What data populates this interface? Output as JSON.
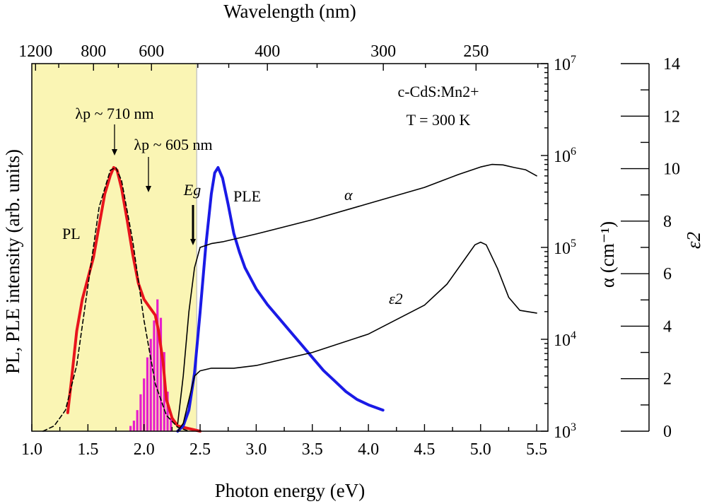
{
  "chart_data": {
    "type": "line",
    "xlabel": "Photon energy (eV)",
    "x_ticks": [
      "1.0",
      "1.5",
      "2.0",
      "2.5",
      "3.0",
      "3.5",
      "4.0",
      "4.5",
      "5.0",
      "5.5"
    ],
    "xlim": [
      1.0,
      5.6
    ],
    "top_axis": {
      "label": "Wavelength (nm)",
      "ticks": [
        {
          "nm": 1200,
          "text": "1200"
        },
        {
          "nm": 800,
          "text": "800"
        },
        {
          "nm": 600,
          "text": "600"
        },
        {
          "nm": 400,
          "text": "400"
        },
        {
          "nm": 300,
          "text": "300"
        },
        {
          "nm": 250,
          "text": "250"
        }
      ]
    },
    "y_left_label": "PL, PLE intensity (arb. units)",
    "y_alpha": {
      "label": "α (cm⁻¹)",
      "scale": "log",
      "lim": [
        1000,
        10000000
      ],
      "ticks": [
        {
          "v": 1000,
          "exp": "3"
        },
        {
          "v": 10000,
          "exp": "4"
        },
        {
          "v": 100000,
          "exp": "5"
        },
        {
          "v": 1000000,
          "exp": "6"
        },
        {
          "v": 10000000,
          "exp": "7"
        }
      ]
    },
    "y_eps2": {
      "label": "ε2",
      "lim": [
        0,
        14
      ],
      "ticks": [
        "0",
        "2",
        "4",
        "6",
        "8",
        "10",
        "12",
        "14"
      ]
    },
    "annotations": {
      "material": "c-CdS:Mn2+",
      "temperature": "T = 300 K",
      "lambda1": "λp ~ 710 nm",
      "lambda2": "λp ~ 605 nm",
      "eg": "Eg",
      "pl_label": "PL",
      "ple_label": "PLE",
      "alpha_label": "α",
      "eps2_label": "ε2"
    },
    "shaded_region": {
      "from_ev": 1.0,
      "to_ev": 2.47,
      "color": "#faf5b4"
    },
    "eg_ev": 2.47,
    "series": [
      {
        "name": "PL",
        "color": "#e8141c",
        "axis": "left_norm",
        "x": [
          1.32,
          1.35,
          1.4,
          1.45,
          1.5,
          1.55,
          1.6,
          1.65,
          1.7,
          1.73,
          1.76,
          1.8,
          1.85,
          1.9,
          1.95,
          2.0,
          2.05,
          2.1,
          2.13,
          2.17,
          2.2,
          2.25,
          2.3,
          2.4,
          2.5
        ],
        "y": [
          0.07,
          0.18,
          0.38,
          0.5,
          0.58,
          0.66,
          0.78,
          0.9,
          0.97,
          1.0,
          0.99,
          0.92,
          0.8,
          0.67,
          0.56,
          0.5,
          0.47,
          0.44,
          0.38,
          0.26,
          0.12,
          0.05,
          0.02,
          0.01,
          0.0
        ]
      },
      {
        "name": "PL fit",
        "color": "#000000",
        "dashed": true,
        "axis": "left_norm",
        "x": [
          1.1,
          1.2,
          1.3,
          1.4,
          1.5,
          1.6,
          1.7,
          1.75,
          1.8,
          1.9,
          2.0,
          2.1,
          2.2,
          2.3,
          2.4
        ],
        "y": [
          0.0,
          0.02,
          0.08,
          0.25,
          0.55,
          0.85,
          0.99,
          1.0,
          0.95,
          0.72,
          0.42,
          0.18,
          0.06,
          0.015,
          0.0
        ]
      },
      {
        "name": "PLE",
        "color": "#1a1ae6",
        "axis": "left_norm",
        "x": [
          2.3,
          2.35,
          2.4,
          2.45,
          2.5,
          2.55,
          2.6,
          2.63,
          2.66,
          2.7,
          2.75,
          2.8,
          2.85,
          2.9,
          3.0,
          3.1,
          3.2,
          3.3,
          3.4,
          3.5,
          3.6,
          3.7,
          3.8,
          3.9,
          4.0,
          4.13
        ],
        "y": [
          0.0,
          0.02,
          0.08,
          0.22,
          0.45,
          0.7,
          0.9,
          0.98,
          1.0,
          0.96,
          0.86,
          0.75,
          0.68,
          0.62,
          0.54,
          0.48,
          0.43,
          0.38,
          0.33,
          0.28,
          0.23,
          0.19,
          0.15,
          0.12,
          0.1,
          0.08
        ]
      },
      {
        "name": "α",
        "color": "#000000",
        "axis": "alpha",
        "x": [
          2.3,
          2.35,
          2.4,
          2.45,
          2.5,
          2.6,
          2.7,
          3.0,
          3.5,
          4.0,
          4.5,
          4.8,
          5.0,
          5.1,
          5.2,
          5.3,
          5.4,
          5.5
        ],
        "y": [
          1200,
          4000,
          20000,
          60000,
          100000,
          110000,
          115000,
          140000,
          200000,
          300000,
          450000,
          620000,
          750000,
          800000,
          790000,
          740000,
          700000,
          600000
        ]
      },
      {
        "name": "ε2",
        "color": "#000000",
        "axis": "eps2",
        "x": [
          2.3,
          2.35,
          2.4,
          2.45,
          2.5,
          2.6,
          2.8,
          3.0,
          3.5,
          4.0,
          4.5,
          4.7,
          4.85,
          4.95,
          5.0,
          5.05,
          5.15,
          5.25,
          5.35,
          5.5
        ],
        "y": [
          0.0,
          0.3,
          1.2,
          2.1,
          2.3,
          2.4,
          2.4,
          2.5,
          3.0,
          3.7,
          4.8,
          5.6,
          6.5,
          7.1,
          7.2,
          7.1,
          6.2,
          5.1,
          4.6,
          4.5
        ]
      }
    ],
    "bars": {
      "name": "PL components",
      "color": "#e61ecb",
      "axis": "left_norm",
      "x": [
        1.88,
        1.91,
        1.94,
        1.97,
        2.0,
        2.03,
        2.06,
        2.09,
        2.12,
        2.15,
        2.18,
        2.21,
        2.24
      ],
      "y": [
        0.02,
        0.04,
        0.08,
        0.14,
        0.2,
        0.28,
        0.35,
        0.42,
        0.5,
        0.43,
        0.3,
        0.15,
        0.05
      ]
    }
  }
}
